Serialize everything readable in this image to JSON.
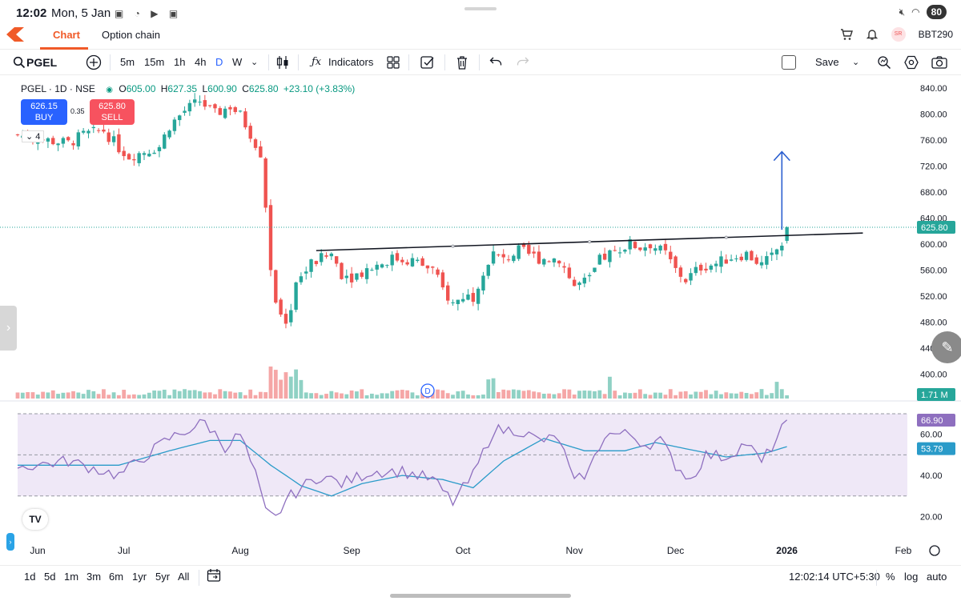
{
  "status_bar": {
    "time": "12:02",
    "date": "Mon, 5 Jan",
    "battery": "80"
  },
  "tabs": {
    "chart": "Chart",
    "option_chain": "Option chain"
  },
  "header": {
    "user_id": "BBT290",
    "avatar_initials": "SR"
  },
  "toolbar": {
    "symbol": "PGEL",
    "intervals": [
      "5m",
      "15m",
      "1h",
      "4h",
      "D",
      "W"
    ],
    "active_interval": "D",
    "indicators_label": "Indicators",
    "save_label": "Save"
  },
  "legend": {
    "title": "PGEL · 1D · NSE",
    "open_label": "O",
    "open": "605.00",
    "high_label": "H",
    "high": "627.35",
    "low_label": "L",
    "low": "600.90",
    "close_label": "C",
    "close": "625.80",
    "change": "+23.10 (+3.83%)"
  },
  "trade": {
    "buy_price": "626.15",
    "buy_label": "BUY",
    "sell_price": "625.80",
    "sell_label": "SELL",
    "spread": "0.35",
    "collapsed_count": "4"
  },
  "colors": {
    "up": "#26a69a",
    "down": "#ef5350",
    "volume_up": "#8fd1c4",
    "volume_down": "#f5a6a6",
    "rsi": "#8e6fbf",
    "rsi_ma": "#2a9bc9",
    "rsi_band": "#efe8f7",
    "arrow": "#2b5fd0",
    "accent": "#f05a28"
  },
  "chart_data": {
    "type": "candlestick",
    "title": "PGEL · 1D · NSE",
    "x_tick_labels": [
      "Jun",
      "Jul",
      "Aug",
      "Sep",
      "Oct",
      "Nov",
      "Dec",
      "2026",
      "Feb"
    ],
    "x_tick_day_index": [
      0,
      21,
      44,
      66,
      88,
      110,
      130,
      152,
      175
    ],
    "y_ticks": [
      400,
      440,
      480,
      520,
      560,
      600,
      640,
      680,
      720,
      760,
      800,
      840
    ],
    "ylim": [
      384,
      852
    ],
    "price_label": "625.80",
    "volume_label": "1.71 M",
    "trendline": {
      "start_day": 59,
      "start_price": 590,
      "end_day": 167,
      "end_price": 617
    },
    "target_arrow": {
      "day": 151,
      "from_price": 622,
      "to_price": 742
    },
    "series": [
      {
        "name": "PGEL",
        "pivots": [
          {
            "day": 0,
            "close": 768
          },
          {
            "day": 4,
            "close": 762
          },
          {
            "day": 10,
            "close": 755
          },
          {
            "day": 13,
            "close": 768
          },
          {
            "day": 17,
            "close": 775
          },
          {
            "day": 20,
            "close": 748
          },
          {
            "day": 22,
            "close": 735
          },
          {
            "day": 28,
            "close": 750
          },
          {
            "day": 30,
            "close": 782
          },
          {
            "day": 33,
            "close": 805
          },
          {
            "day": 36,
            "close": 820
          },
          {
            "day": 39,
            "close": 800
          },
          {
            "day": 42,
            "close": 812
          },
          {
            "day": 44,
            "close": 798
          },
          {
            "day": 46,
            "close": 770
          },
          {
            "day": 48,
            "close": 740
          },
          {
            "day": 49,
            "close": 660
          },
          {
            "day": 50,
            "close": 560
          },
          {
            "day": 51,
            "close": 510
          },
          {
            "day": 53,
            "close": 470
          },
          {
            "day": 55,
            "close": 540
          },
          {
            "day": 58,
            "close": 570
          },
          {
            "day": 62,
            "close": 585
          },
          {
            "day": 64,
            "close": 555
          },
          {
            "day": 66,
            "close": 550
          },
          {
            "day": 70,
            "close": 565
          },
          {
            "day": 74,
            "close": 578
          },
          {
            "day": 78,
            "close": 575
          },
          {
            "day": 82,
            "close": 560
          },
          {
            "day": 84,
            "close": 530
          },
          {
            "day": 86,
            "close": 508
          },
          {
            "day": 88,
            "close": 520
          },
          {
            "day": 90,
            "close": 520
          },
          {
            "day": 92,
            "close": 560
          },
          {
            "day": 94,
            "close": 585
          },
          {
            "day": 96,
            "close": 575
          },
          {
            "day": 99,
            "close": 590
          },
          {
            "day": 103,
            "close": 578
          },
          {
            "day": 107,
            "close": 578
          },
          {
            "day": 110,
            "close": 535
          },
          {
            "day": 113,
            "close": 545
          },
          {
            "day": 115,
            "close": 575
          },
          {
            "day": 118,
            "close": 590
          },
          {
            "day": 121,
            "close": 600
          },
          {
            "day": 123,
            "close": 595
          },
          {
            "day": 125,
            "close": 600
          },
          {
            "day": 128,
            "close": 585
          },
          {
            "day": 130,
            "close": 560
          },
          {
            "day": 132,
            "close": 545
          },
          {
            "day": 135,
            "close": 565
          },
          {
            "day": 138,
            "close": 570
          },
          {
            "day": 141,
            "close": 580
          },
          {
            "day": 144,
            "close": 585
          },
          {
            "day": 147,
            "close": 568
          },
          {
            "day": 149,
            "close": 580
          },
          {
            "day": 151,
            "close": 603
          },
          {
            "day": 152,
            "close": 625.8
          }
        ]
      }
    ],
    "indicator": {
      "name": "RSI",
      "ylim": [
        15,
        90
      ],
      "y_ticks": [
        20,
        40,
        60
      ],
      "levels": [
        70,
        50,
        30
      ],
      "rsi_value": "66.90",
      "ma_value": "53.79",
      "rsi_pivots": [
        {
          "day": 0,
          "value": 44
        },
        {
          "day": 10,
          "value": 47
        },
        {
          "day": 20,
          "value": 40
        },
        {
          "day": 30,
          "value": 58
        },
        {
          "day": 37,
          "value": 66
        },
        {
          "day": 41,
          "value": 54
        },
        {
          "day": 44,
          "value": 60
        },
        {
          "day": 47,
          "value": 40
        },
        {
          "day": 49,
          "value": 22
        },
        {
          "day": 51,
          "value": 19
        },
        {
          "day": 53,
          "value": 28
        },
        {
          "day": 56,
          "value": 34
        },
        {
          "day": 60,
          "value": 40
        },
        {
          "day": 64,
          "value": 36
        },
        {
          "day": 70,
          "value": 42
        },
        {
          "day": 76,
          "value": 42
        },
        {
          "day": 82,
          "value": 38
        },
        {
          "day": 86,
          "value": 27
        },
        {
          "day": 90,
          "value": 40
        },
        {
          "day": 94,
          "value": 62
        },
        {
          "day": 99,
          "value": 62
        },
        {
          "day": 103,
          "value": 57
        },
        {
          "day": 107,
          "value": 58
        },
        {
          "day": 110,
          "value": 36
        },
        {
          "day": 113,
          "value": 43
        },
        {
          "day": 116,
          "value": 60
        },
        {
          "day": 121,
          "value": 60
        },
        {
          "day": 124,
          "value": 55
        },
        {
          "day": 127,
          "value": 57
        },
        {
          "day": 130,
          "value": 45
        },
        {
          "day": 133,
          "value": 38
        },
        {
          "day": 136,
          "value": 50
        },
        {
          "day": 140,
          "value": 49
        },
        {
          "day": 144,
          "value": 56
        },
        {
          "day": 147,
          "value": 46
        },
        {
          "day": 150,
          "value": 58
        },
        {
          "day": 152,
          "value": 67
        }
      ],
      "ma_pivots": [
        {
          "day": 0,
          "value": 45
        },
        {
          "day": 20,
          "value": 45
        },
        {
          "day": 30,
          "value": 52
        },
        {
          "day": 38,
          "value": 57
        },
        {
          "day": 44,
          "value": 57
        },
        {
          "day": 50,
          "value": 45
        },
        {
          "day": 56,
          "value": 35
        },
        {
          "day": 62,
          "value": 30
        },
        {
          "day": 68,
          "value": 36
        },
        {
          "day": 76,
          "value": 40
        },
        {
          "day": 84,
          "value": 38
        },
        {
          "day": 90,
          "value": 34
        },
        {
          "day": 96,
          "value": 47
        },
        {
          "day": 104,
          "value": 58
        },
        {
          "day": 112,
          "value": 52
        },
        {
          "day": 120,
          "value": 52
        },
        {
          "day": 126,
          "value": 56
        },
        {
          "day": 132,
          "value": 53
        },
        {
          "day": 140,
          "value": 49
        },
        {
          "day": 148,
          "value": 51
        },
        {
          "day": 152,
          "value": 54
        }
      ]
    }
  },
  "bottom": {
    "ranges": [
      "1d",
      "5d",
      "1m",
      "3m",
      "6m",
      "1yr",
      "5yr",
      "All"
    ],
    "timestamp": "12:02:14 UTC+5:30",
    "percent_label": "%",
    "log_label": "log",
    "auto_label": "auto"
  }
}
